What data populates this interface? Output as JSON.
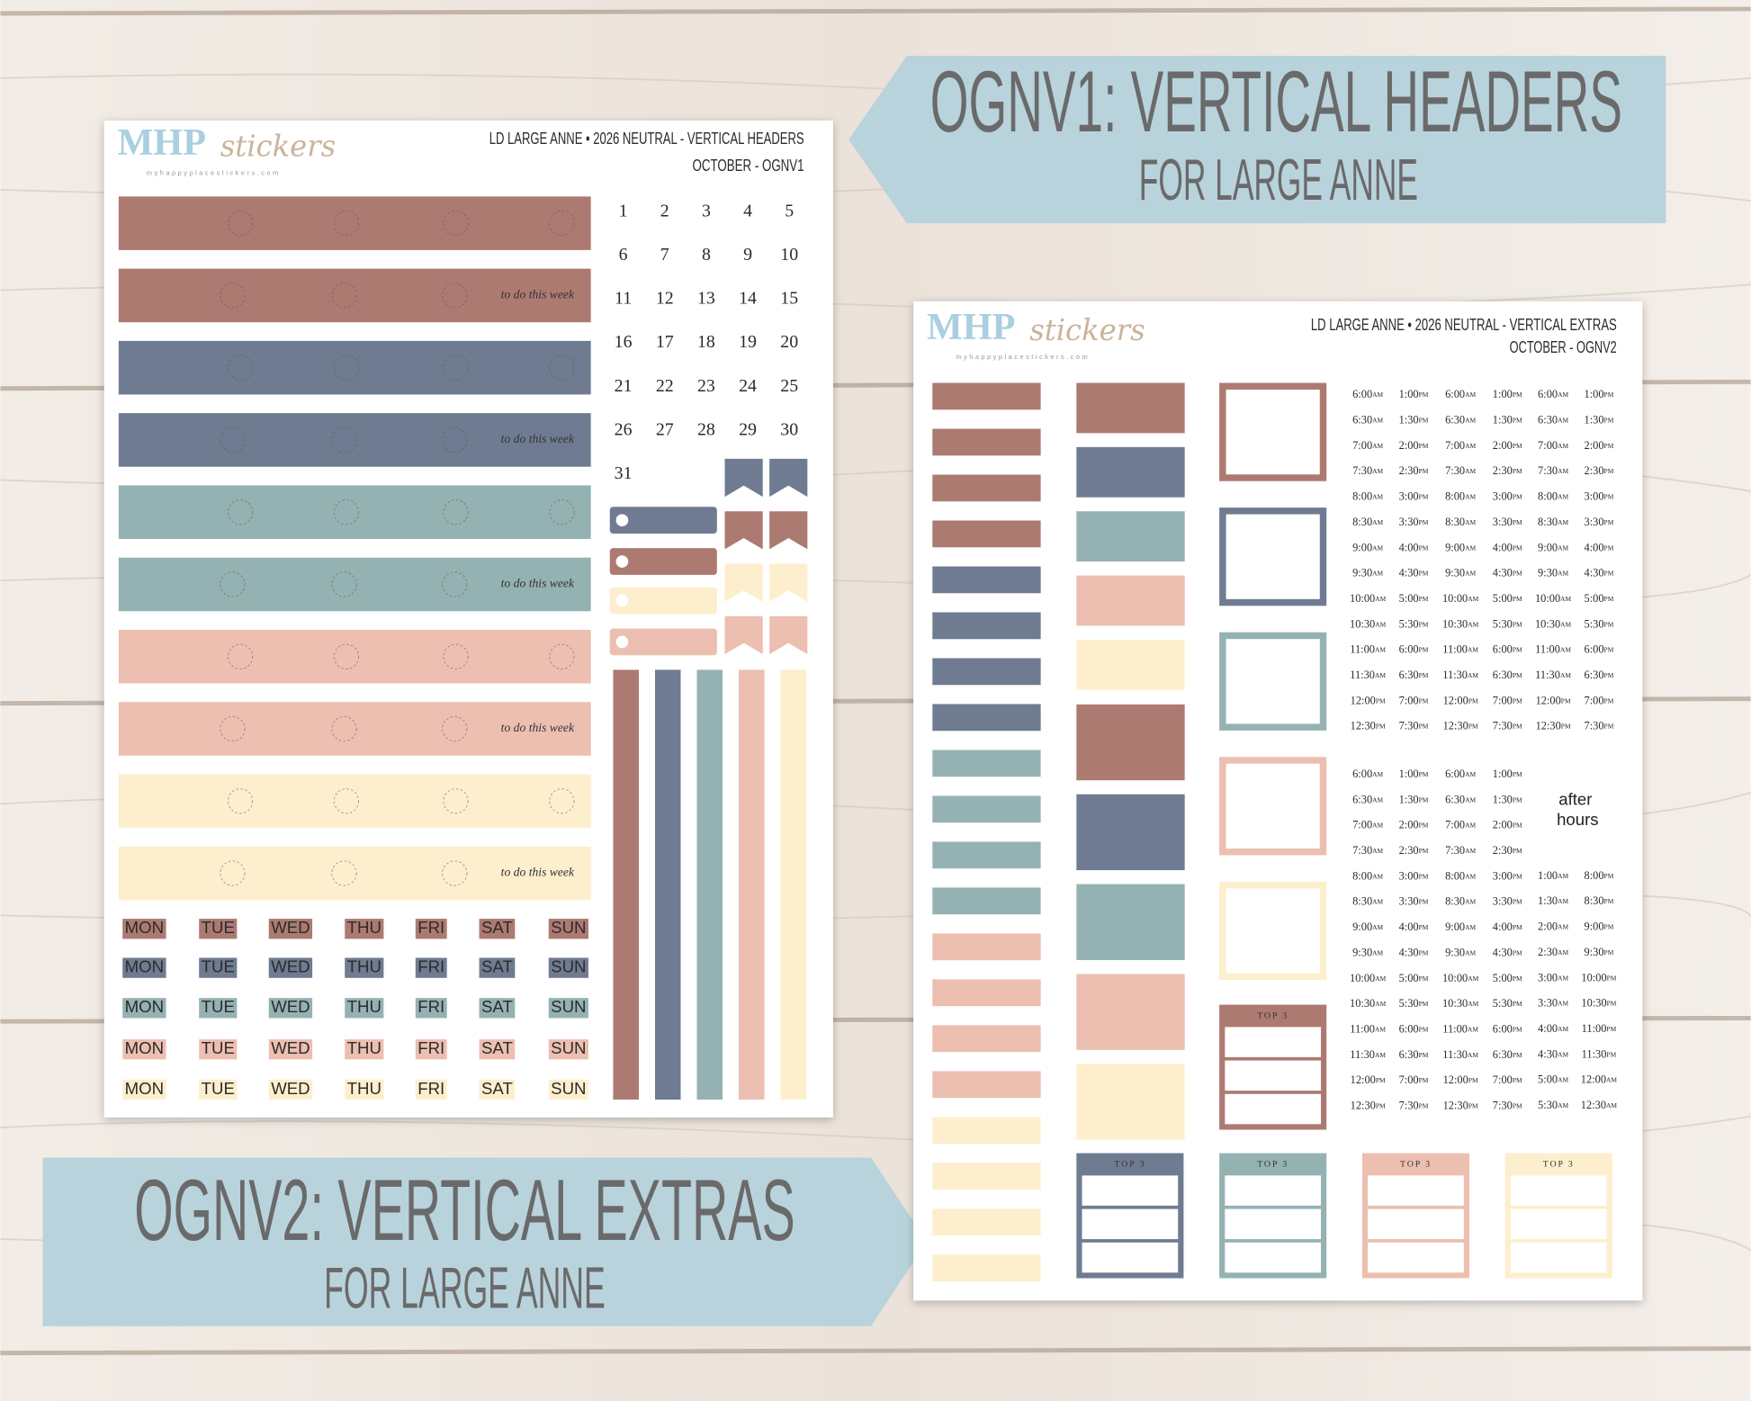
{
  "banners": [
    {
      "title": "OGNV1: VERTICAL HEADERS",
      "subtitle": "FOR LARGE ANNE"
    },
    {
      "title": "OGNV2: VERTICAL EXTRAS",
      "subtitle": "FOR LARGE ANNE"
    }
  ],
  "logo": {
    "brand": "MHP",
    "script": "stickers",
    "url": "myhappyplacestickers.com"
  },
  "sheet1": {
    "title": "LD LARGE ANNE • 2026 NEUTRAL - VERTICAL HEADERS",
    "subtitle": "OCTOBER  - OGNV1",
    "header_note": "to do this week",
    "calendar": [
      1,
      2,
      3,
      4,
      5,
      6,
      7,
      8,
      9,
      10,
      11,
      12,
      13,
      14,
      15,
      16,
      17,
      18,
      19,
      20,
      21,
      22,
      23,
      24,
      25,
      26,
      27,
      28,
      29,
      30,
      31
    ],
    "days": [
      "MON",
      "TUE",
      "WED",
      "THU",
      "FRI",
      "SAT",
      "SUN"
    ]
  },
  "sheet2": {
    "title": "LD LARGE ANNE • 2026 NEUTRAL - VERTICAL EXTRAS",
    "subtitle": "OCTOBER - OGNV2",
    "top3": "TOP 3",
    "after_hours": [
      "after",
      "hours"
    ],
    "times": {
      "morning": [
        "6:00 AM",
        "6:30 AM",
        "7:00 AM",
        "7:30 AM",
        "8:00 AM",
        "8:30 AM",
        "9:00 AM",
        "9:30 AM",
        "10:00 AM",
        "10:30 AM",
        "11:00 AM",
        "11:30 AM",
        "12:00 PM",
        "12:30 PM"
      ],
      "afternoon": [
        "1:00 PM",
        "1:30 PM",
        "2:00 PM",
        "2:30 PM",
        "3:00 PM",
        "3:30 PM",
        "4:00 PM",
        "4:30 PM",
        "5:00 PM",
        "5:30 PM",
        "6:00 PM",
        "6:30 PM",
        "7:00 PM",
        "7:30 PM"
      ],
      "night_early": [
        "1:00 AM",
        "1:30 AM",
        "2:00 AM",
        "2:30 AM",
        "3:00 AM",
        "3:30 AM",
        "4:00 AM",
        "4:30 AM",
        "5:00 AM",
        "5:30 AM"
      ],
      "night_late": [
        "8:00 PM",
        "8:30 PM",
        "9:00 PM",
        "9:30 PM",
        "10:00 PM",
        "10:30 PM",
        "11:00 PM",
        "11:30 PM",
        "12:00 AM",
        "12:30 AM"
      ]
    }
  }
}
